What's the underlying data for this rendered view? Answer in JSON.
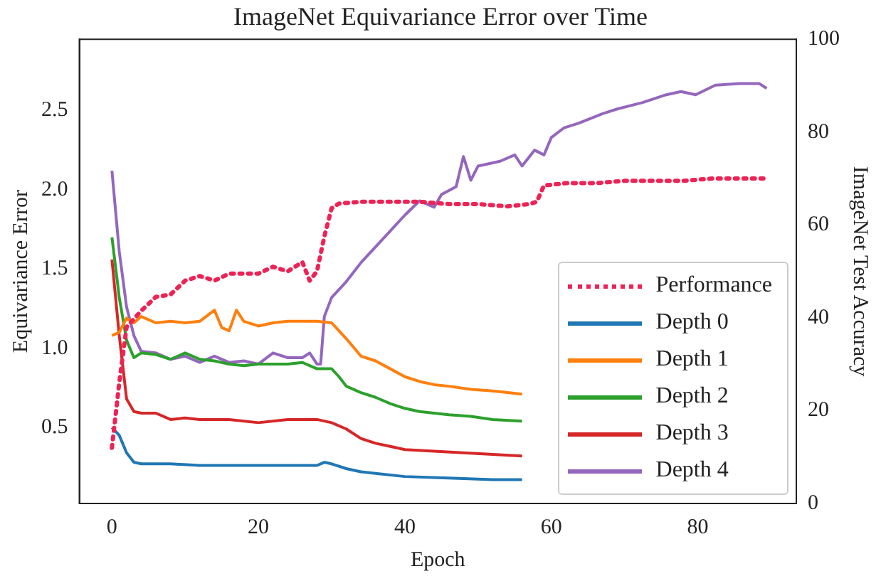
{
  "chart_data": {
    "type": "line",
    "title": "ImageNet Equivariance Error over Time",
    "xlabel": "Epoch",
    "ylabel": "Equivariance Error",
    "y2label": "ImageNet Test Accuracy",
    "xlim": [
      -4.45,
      93.45
    ],
    "xticks": [
      0,
      20,
      40,
      60,
      80
    ],
    "ylim": [
      0.02,
      2.95
    ],
    "yticks": [
      {
        "value": 0.5,
        "label": "0.5"
      },
      {
        "value": 1,
        "label": "1.0"
      },
      {
        "value": 1.5,
        "label": "1.5"
      },
      {
        "value": 2,
        "label": "2.0"
      },
      {
        "value": 2.5,
        "label": "2.5"
      }
    ],
    "y2lim": [
      0,
      100
    ],
    "y2ticks": [
      0,
      20,
      40,
      60,
      80,
      100
    ],
    "grid": false,
    "legend": "bottom right",
    "marker": "none",
    "series": [
      {
        "name": "Performance",
        "color": "#ee2255",
        "axis": "y2",
        "line_style": "dotted",
        "x": [
          0,
          1,
          2,
          4,
          6,
          8,
          10,
          12,
          14,
          16,
          18,
          20,
          22,
          24,
          26,
          27,
          28,
          29,
          30,
          31,
          34,
          38,
          42,
          46,
          50,
          54,
          57,
          58,
          59,
          62,
          66,
          70,
          74,
          78,
          82,
          86,
          89
        ],
        "values": [
          12,
          26,
          38,
          41.5,
          44.5,
          45,
          48,
          49,
          48,
          49.5,
          49.5,
          49.5,
          51,
          50,
          52,
          48,
          50,
          57.5,
          63.6,
          64.6,
          65,
          65,
          65,
          64.5,
          64.5,
          64,
          64.5,
          65,
          68.5,
          69,
          69,
          69.5,
          69.5,
          69.5,
          70,
          70,
          70
        ]
      },
      {
        "name": "Depth 0",
        "color": "#1f77b4",
        "x": [
          0,
          1,
          2,
          3,
          4,
          8,
          12,
          16,
          20,
          24,
          28,
          29,
          30,
          32,
          34,
          36,
          40,
          46,
          52,
          56
        ],
        "values": [
          0.5,
          0.45,
          0.34,
          0.28,
          0.27,
          0.27,
          0.26,
          0.26,
          0.26,
          0.26,
          0.26,
          0.28,
          0.27,
          0.24,
          0.22,
          0.21,
          0.19,
          0.18,
          0.17,
          0.17
        ]
      },
      {
        "name": "Depth 1",
        "color": "#ff7f0e",
        "x": [
          0,
          1,
          2,
          3,
          4,
          6,
          8,
          10,
          12,
          14,
          15,
          16,
          17,
          18,
          20,
          22,
          24,
          26,
          28,
          30,
          31,
          32,
          34,
          36,
          38,
          40,
          42,
          44,
          46,
          49,
          52,
          56
        ],
        "values": [
          1.08,
          1.1,
          1.19,
          1.16,
          1.2,
          1.16,
          1.17,
          1.16,
          1.17,
          1.24,
          1.13,
          1.11,
          1.24,
          1.17,
          1.14,
          1.16,
          1.17,
          1.17,
          1.17,
          1.16,
          1.11,
          1.06,
          0.95,
          0.92,
          0.87,
          0.82,
          0.79,
          0.77,
          0.76,
          0.74,
          0.73,
          0.71
        ]
      },
      {
        "name": "Depth 2",
        "color": "#2ca02c",
        "x": [
          0,
          1,
          2,
          3,
          4,
          6,
          8,
          10,
          12,
          14,
          16,
          18,
          20,
          22,
          24,
          26,
          28,
          30,
          31,
          32,
          34,
          36,
          38,
          40,
          42,
          44,
          46,
          49,
          52,
          56
        ],
        "values": [
          1.7,
          1.32,
          1.05,
          0.94,
          0.97,
          0.96,
          0.93,
          0.97,
          0.93,
          0.92,
          0.9,
          0.89,
          0.9,
          0.9,
          0.9,
          0.91,
          0.87,
          0.87,
          0.82,
          0.76,
          0.72,
          0.69,
          0.65,
          0.62,
          0.6,
          0.59,
          0.58,
          0.57,
          0.55,
          0.54
        ]
      },
      {
        "name": "Depth 3",
        "color": "#d62728",
        "x": [
          0,
          1,
          2,
          3,
          4,
          6,
          8,
          10,
          12,
          16,
          20,
          24,
          28,
          30,
          32,
          34,
          36,
          38,
          40,
          44,
          48,
          52,
          56
        ],
        "values": [
          1.56,
          1.08,
          0.68,
          0.6,
          0.59,
          0.59,
          0.55,
          0.56,
          0.55,
          0.55,
          0.53,
          0.55,
          0.55,
          0.53,
          0.49,
          0.43,
          0.4,
          0.38,
          0.36,
          0.35,
          0.34,
          0.33,
          0.32
        ]
      },
      {
        "name": "Depth 4",
        "color": "#9467bd",
        "x": [
          0,
          1,
          2,
          3,
          4,
          6,
          8,
          10,
          12,
          14,
          16,
          18,
          20,
          22,
          24,
          26,
          27,
          28,
          28.5,
          29,
          30,
          32,
          34,
          36,
          38,
          40,
          42,
          44,
          45,
          47,
          48,
          49,
          50,
          53,
          55,
          56,
          57.7,
          59,
          60,
          61.7,
          63.7,
          67,
          69,
          72.4,
          75.7,
          77.7,
          79.7,
          82.4,
          85.7,
          88.4,
          89.4
        ],
        "values": [
          2.12,
          1.61,
          1.26,
          1.08,
          0.98,
          0.97,
          0.93,
          0.95,
          0.91,
          0.95,
          0.91,
          0.92,
          0.9,
          0.97,
          0.94,
          0.94,
          0.97,
          0.9,
          0.9,
          1.2,
          1.32,
          1.42,
          1.54,
          1.64,
          1.74,
          1.84,
          1.93,
          1.89,
          1.97,
          2.02,
          2.21,
          2.06,
          2.15,
          2.18,
          2.22,
          2.15,
          2.25,
          2.22,
          2.33,
          2.39,
          2.42,
          2.48,
          2.51,
          2.55,
          2.6,
          2.62,
          2.6,
          2.66,
          2.67,
          2.67,
          2.64
        ]
      }
    ]
  }
}
